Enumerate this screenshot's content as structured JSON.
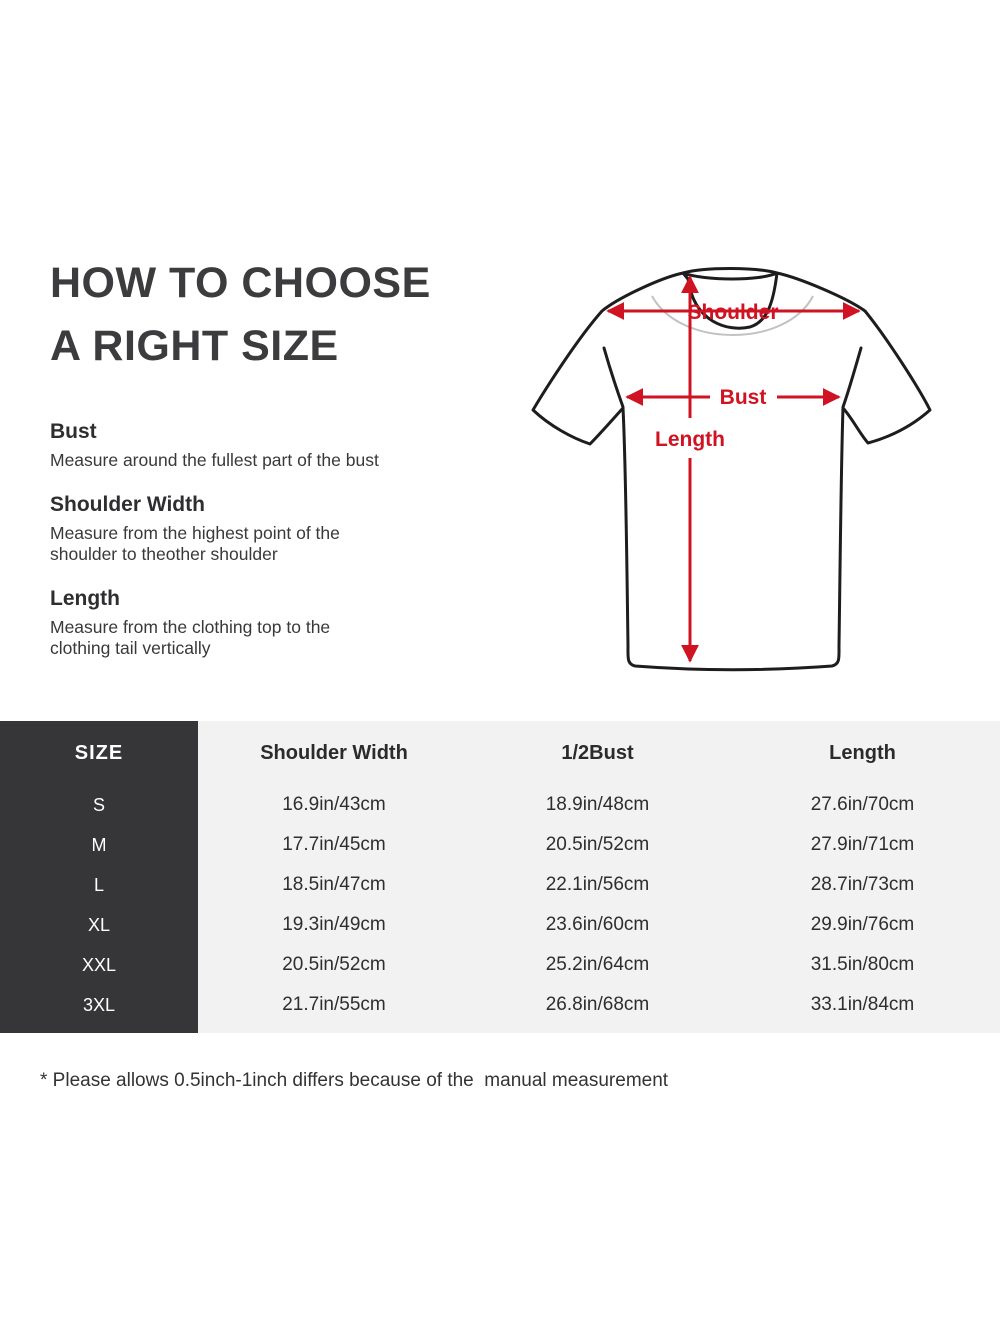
{
  "title": {
    "line1": "HOW TO CHOOSE",
    "line2": "A RIGHT SIZE"
  },
  "guide": {
    "sections": [
      {
        "heading": "Bust",
        "text": "Measure around the fullest part of the bust"
      },
      {
        "heading": "Shoulder Width",
        "text": "Measure from the highest point of the\nshoulder to theother shoulder"
      },
      {
        "heading": "Length",
        "text": "Measure from the clothing top to the\nclothing tail vertically"
      }
    ]
  },
  "diagram": {
    "labels": {
      "shoulder": "Shoulder",
      "bust": "Bust",
      "length": "Length"
    },
    "colors": {
      "arrow_red": "#d01322",
      "outline_black": "#1d1d1d",
      "shadow_gray": "#a8a8a8"
    }
  },
  "table": {
    "headers": [
      "SIZE",
      "Shoulder Width",
      "1/2Bust",
      "Length"
    ],
    "rows": [
      {
        "size": "S",
        "shoulder": "16.9in/43cm",
        "bust": "18.9in/48cm",
        "length": "27.6in/70cm"
      },
      {
        "size": "M",
        "shoulder": "17.7in/45cm",
        "bust": "20.5in/52cm",
        "length": "27.9in/71cm"
      },
      {
        "size": "L",
        "shoulder": "18.5in/47cm",
        "bust": "22.1in/56cm",
        "length": "28.7in/73cm"
      },
      {
        "size": "XL",
        "shoulder": "19.3in/49cm",
        "bust": "23.6in/60cm",
        "length": "29.9in/76cm"
      },
      {
        "size": "XXL",
        "shoulder": "20.5in/52cm",
        "bust": "25.2in/64cm",
        "length": "31.5in/80cm"
      },
      {
        "size": "3XL",
        "shoulder": "21.7in/55cm",
        "bust": "26.8in/68cm",
        "length": "33.1in/84cm"
      }
    ],
    "colors": {
      "size_col_bg": "#363638",
      "body_bg": "#f2f2f3"
    }
  },
  "footnote": "* Please allows 0.5inch-1inch differs because of the  manual measurement"
}
